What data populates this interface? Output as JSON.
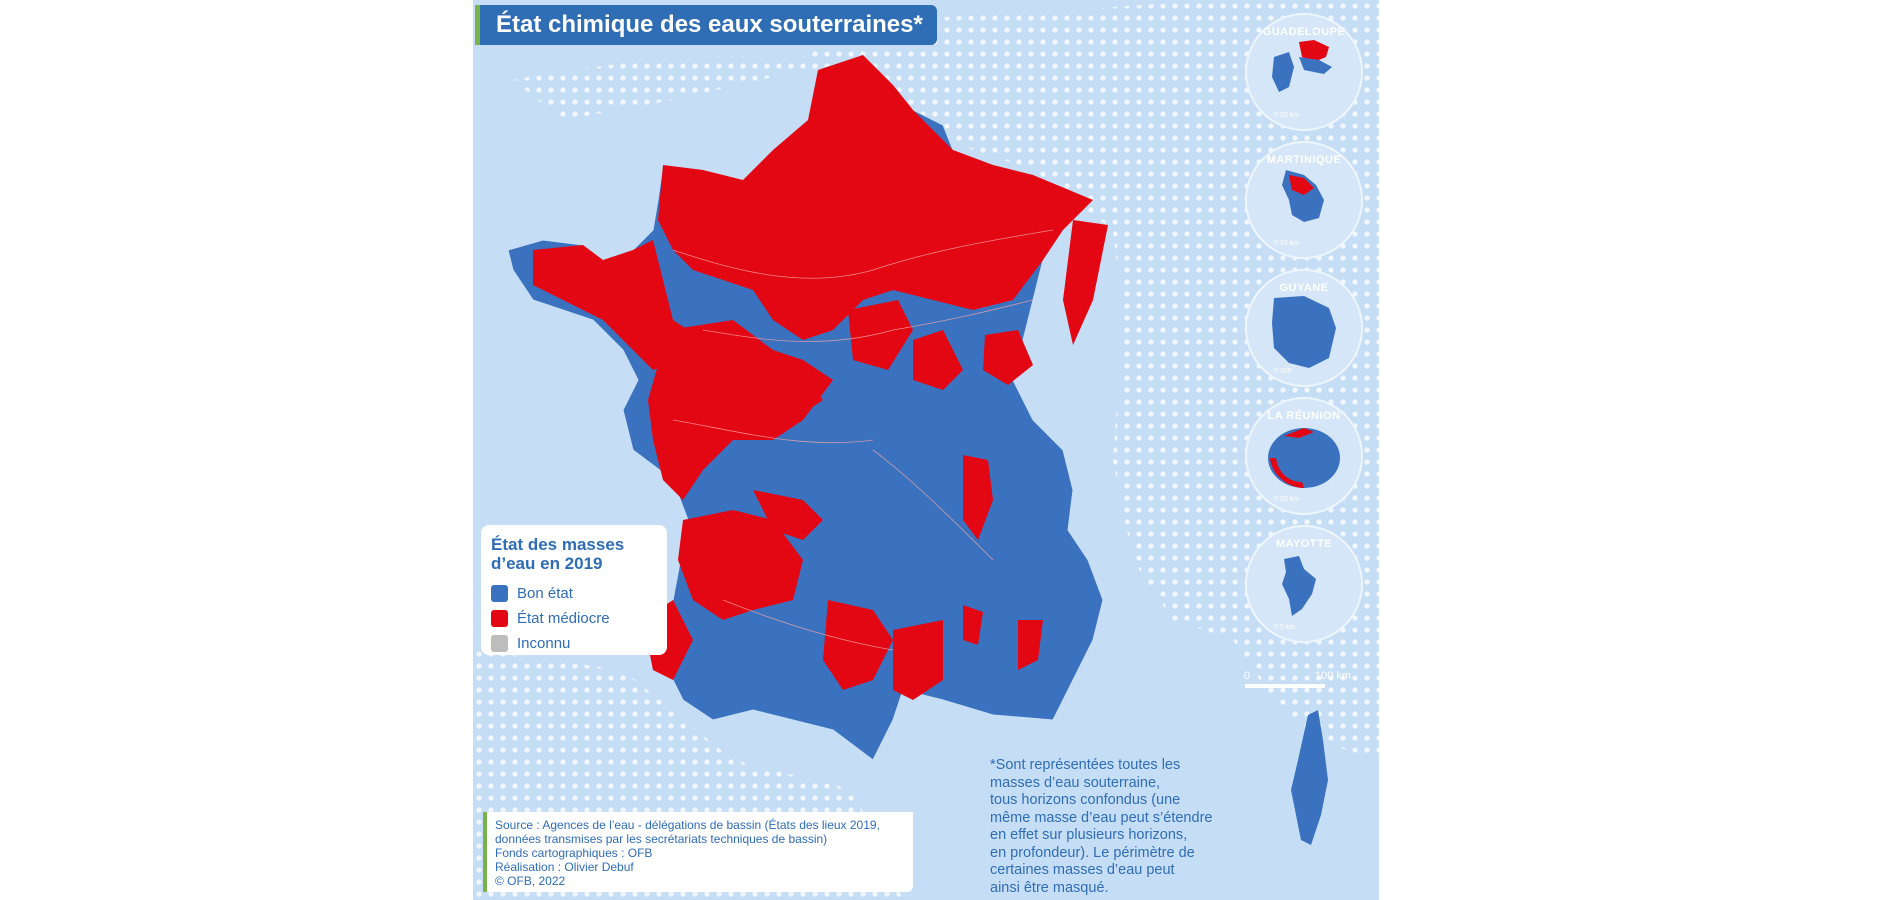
{
  "title": "État chimique des eaux souterraines*",
  "legend": {
    "title_line1": "État des masses",
    "title_line2": "d’eau en 2019",
    "items": [
      {
        "label": "Bon état",
        "color": "#3a72c0"
      },
      {
        "label": "État médiocre",
        "color": "#e30613"
      },
      {
        "label": "Inconnu",
        "color": "#bdbdbd"
      }
    ]
  },
  "insets": [
    {
      "name": "GUADELOUPE",
      "scale": "0    20 km"
    },
    {
      "name": "MARTINIQUE",
      "scale": "0    10 km"
    },
    {
      "name": "GUYANE",
      "scale": "0   100"
    },
    {
      "name": "LA RÉUNION",
      "scale": "0    20 km"
    },
    {
      "name": "MAYOTTE",
      "scale": "0     5 km"
    }
  ],
  "scalebar": {
    "zero": "0",
    "label": "100 km"
  },
  "note": [
    "*Sont représentées toutes les",
    "masses d’eau souterraine,",
    "tous horizons confondus (une",
    "même masse d’eau peut s’étendre",
    "en effet sur plusieurs horizons,",
    "en profondeur). Le périmètre de",
    "certaines masses d’eau peut",
    "ainsi être masqué."
  ],
  "source": [
    "Source : Agences de l’eau - délégations de bassin (États des lieux 2019,",
    "données transmises par les secrétariats techniques de bassin)",
    "Fonds cartographiques : OFB",
    "Réalisation : Olivier Debuf",
    "© OFB, 2022"
  ],
  "colors": {
    "sea": "#c6def5",
    "good": "#3a72c0",
    "poor": "#e30613",
    "unknown": "#bdbdbd",
    "accent": "#7ab34a"
  }
}
